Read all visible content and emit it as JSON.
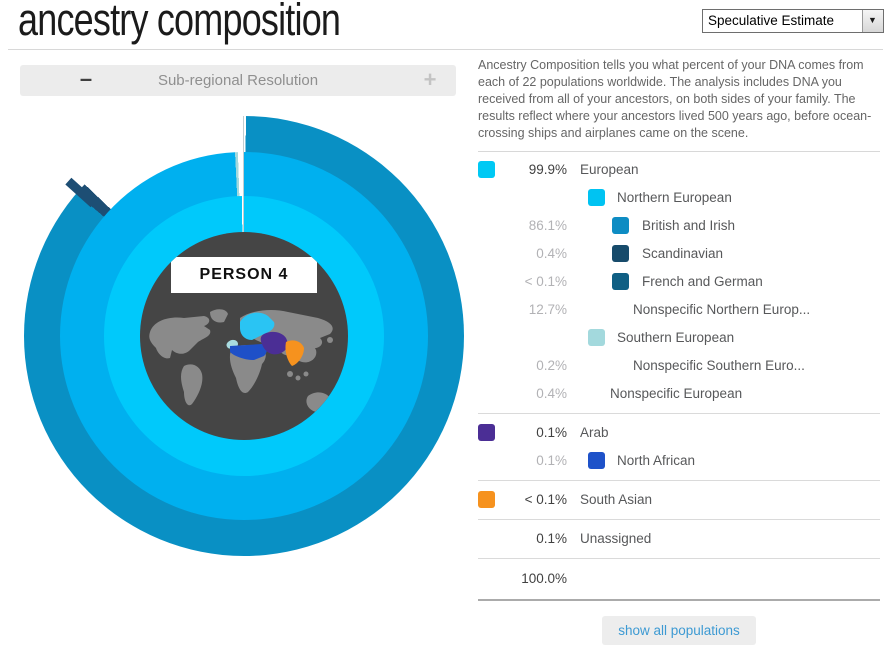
{
  "header": {
    "title": "ancestry composition",
    "estimate_dropdown": {
      "value": "Speculative Estimate",
      "arrow_icon": "▼"
    }
  },
  "resolution": {
    "label": "Sub-regional Resolution",
    "minus_icon": "–",
    "plus_icon": "+"
  },
  "chart": {
    "person_label": "PERSON 4"
  },
  "description": {
    "text": "Ancestry Composition tells you what percent of your DNA comes from each of 22 populations worldwide. The analysis includes DNA you received from all of your ancestors, on both sides of your family. The results reflect where your ancestors lived 500 years ago, before ocean-crossing ships and airplanes came on the scene."
  },
  "legend": {
    "rows": [
      {
        "percent": "99.9%",
        "muted": false,
        "swatch": "#00c9f4",
        "indent": 0,
        "label": "European"
      },
      {
        "percent": "",
        "muted": true,
        "swatch": "#00c3f2",
        "indent": 1,
        "label": "Northern European"
      },
      {
        "percent": "86.1%",
        "muted": true,
        "swatch": "#0e8cc3",
        "indent": 2,
        "label": "British and Irish"
      },
      {
        "percent": "0.4%",
        "muted": true,
        "swatch": "#174b6b",
        "indent": 2,
        "label": "Scandinavian"
      },
      {
        "percent": "< 0.1%",
        "muted": true,
        "swatch": "#0f5f84",
        "indent": 2,
        "label": "French and German"
      },
      {
        "percent": "12.7%",
        "muted": true,
        "swatch": null,
        "indent": 2,
        "label": "Nonspecific Northern Europ..."
      },
      {
        "percent": "",
        "muted": true,
        "swatch": "#a3d9dd",
        "indent": 1,
        "label": "Southern European"
      },
      {
        "percent": "0.2%",
        "muted": true,
        "swatch": null,
        "indent": 2,
        "label": "Nonspecific Southern Euro..."
      },
      {
        "percent": "0.4%",
        "muted": true,
        "swatch": null,
        "indent": 1,
        "label": "Nonspecific European",
        "divider_after": true
      },
      {
        "percent": "0.1%",
        "muted": false,
        "swatch": "#4b2e95",
        "indent": 0,
        "label": "Arab"
      },
      {
        "percent": "0.1%",
        "muted": true,
        "swatch": "#1e52c9",
        "indent": 1,
        "label": "North African",
        "divider_after": true
      },
      {
        "percent": "< 0.1%",
        "muted": false,
        "swatch": "#f6921e",
        "indent": 0,
        "label": "South Asian",
        "divider_after": true
      },
      {
        "percent": "0.1%",
        "muted": false,
        "swatch": null,
        "indent": 0,
        "label": "Unassigned",
        "divider_after": true
      },
      {
        "percent": "100.0%",
        "muted": false,
        "swatch": null,
        "indent": 0,
        "label": "",
        "total": true,
        "divider_after": true,
        "strong_divider": true
      }
    ]
  },
  "actions": {
    "show_all_label": "show all populations"
  },
  "chart_data": {
    "type": "sunburst",
    "center_label": "PERSON 4",
    "units": "percent of DNA",
    "rings": [
      {
        "level": "continental",
        "segments": [
          {
            "label": "European",
            "value": 99.9,
            "color": "#00c9fb"
          },
          {
            "label": "Arab",
            "value": 0.1,
            "color": "#4b2e95"
          },
          {
            "label": "South Asian",
            "value": 0.05,
            "color": "#f6921e"
          },
          {
            "label": "Unassigned",
            "value": 0.1,
            "color": "#ffffff"
          }
        ]
      },
      {
        "level": "regional",
        "segments": [
          {
            "label": "Northern European",
            "value": 99.3,
            "color": "#00b0ef"
          },
          {
            "label": "Southern European",
            "value": 0.2,
            "color": "#a3d9dd"
          },
          {
            "label": "Nonspecific European",
            "value": 0.4,
            "color": "#ffffff"
          }
        ]
      },
      {
        "level": "sub-regional",
        "segments": [
          {
            "label": "British and Irish",
            "value": 86.1,
            "color": "#0990c4"
          },
          {
            "label": "Scandinavian",
            "value": 0.4,
            "color": "#1d4e74"
          },
          {
            "label": "French and German",
            "value": 0.05,
            "color": "#0f5f84"
          },
          {
            "label": "Nonspecific Northern European",
            "value": 12.7,
            "color": "#ffffff"
          }
        ]
      }
    ],
    "total": "100.0%",
    "map_highlight_colors": {
      "europe": "#2ac4f3",
      "iberia": "#a8dbe0",
      "north_africa": "#1e50c8",
      "middle_east": "#4b2e95",
      "india": "#f6921e",
      "landmass": "#8a8a8a",
      "globe_background": "#454545"
    }
  }
}
